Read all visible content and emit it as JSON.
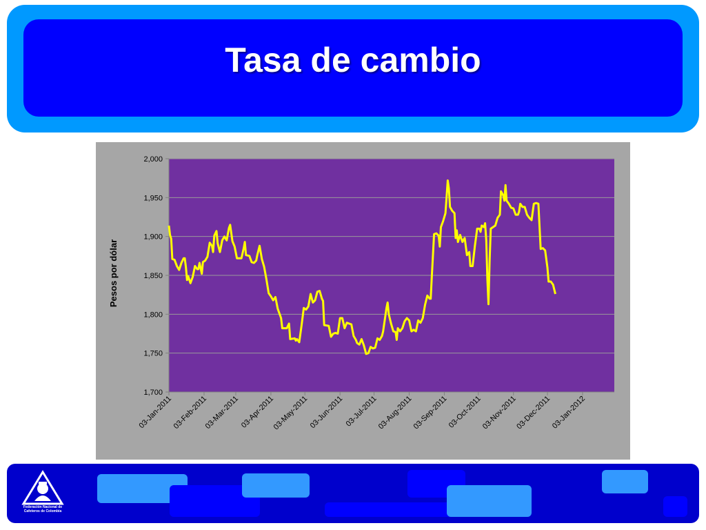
{
  "slide": {
    "title": "Tasa de cambio"
  },
  "logo": {
    "icon": "fnc-coffee-grower-logo",
    "line1": "Federación Nacional de",
    "line2": "Cafeteros de Colombia"
  },
  "colors": {
    "header_outer": "#0099ff",
    "header_inner": "#0000ff",
    "chart_frame": "#a6a6a6",
    "plot_area": "#7030a0",
    "series_line": "#ffff00",
    "footer_band": "#0000cc"
  },
  "chart_data": {
    "type": "line",
    "title": "",
    "xlabel": "",
    "ylabel": "Pesos por dólar",
    "ylim": [
      1700,
      2000
    ],
    "yticks": [
      1700,
      1750,
      1800,
      1850,
      1900,
      1950,
      2000
    ],
    "ytick_labels": [
      "1,700",
      "1,750",
      "1,800",
      "1,850",
      "1,900",
      "1,950",
      "2,000"
    ],
    "xlim": [
      "2011-01-03",
      "2012-01-31"
    ],
    "xticks": [
      "2011-01-03",
      "2011-02-03",
      "2011-03-03",
      "2011-04-03",
      "2011-05-03",
      "2011-06-03",
      "2011-07-03",
      "2011-08-03",
      "2011-09-03",
      "2011-10-03",
      "2011-11-03",
      "2011-12-03",
      "2012-01-03"
    ],
    "xtick_labels": [
      "03-Jan-2011",
      "03-Feb-2011",
      "03-Mar-2011",
      "03-Apr-2011",
      "03-May-2011",
      "03-Jun-2011",
      "03-Jul-2011",
      "03-Aug-2011",
      "03-Sep-2011",
      "03-Oct-2011",
      "03-Nov-2011",
      "03-Dec-2011",
      "03-Jan-2012"
    ],
    "grid": true,
    "legend": "none",
    "series": [
      {
        "points": [
          [
            "2011-01-03",
            1914
          ],
          [
            "2011-01-04",
            1902
          ],
          [
            "2011-01-05",
            1897
          ],
          [
            "2011-01-06",
            1871
          ],
          [
            "2011-01-08",
            1870
          ],
          [
            "2011-01-10",
            1862
          ],
          [
            "2011-01-12",
            1857
          ],
          [
            "2011-01-14",
            1866
          ],
          [
            "2011-01-16",
            1872
          ],
          [
            "2011-01-17",
            1872
          ],
          [
            "2011-01-18",
            1860
          ],
          [
            "2011-01-19",
            1844
          ],
          [
            "2011-01-20",
            1849
          ],
          [
            "2011-01-22",
            1840
          ],
          [
            "2011-01-24",
            1848
          ],
          [
            "2011-01-26",
            1862
          ],
          [
            "2011-01-28",
            1858
          ],
          [
            "2011-01-29",
            1858
          ],
          [
            "2011-01-30",
            1866
          ],
          [
            "2011-02-01",
            1852
          ],
          [
            "2011-02-02",
            1867
          ],
          [
            "2011-02-04",
            1869
          ],
          [
            "2011-02-06",
            1874
          ],
          [
            "2011-02-08",
            1892
          ],
          [
            "2011-02-10",
            1888
          ],
          [
            "2011-02-11",
            1880
          ],
          [
            "2011-02-12",
            1901
          ],
          [
            "2011-02-14",
            1907
          ],
          [
            "2011-02-15",
            1891
          ],
          [
            "2011-02-17",
            1880
          ],
          [
            "2011-02-19",
            1895
          ],
          [
            "2011-02-21",
            1900
          ],
          [
            "2011-02-23",
            1895
          ],
          [
            "2011-02-25",
            1911
          ],
          [
            "2011-02-26",
            1915
          ],
          [
            "2011-02-28",
            1894
          ],
          [
            "2011-03-02",
            1887
          ],
          [
            "2011-03-04",
            1872
          ],
          [
            "2011-03-06",
            1872
          ],
          [
            "2011-03-08",
            1872
          ],
          [
            "2011-03-10",
            1885
          ],
          [
            "2011-03-11",
            1893
          ],
          [
            "2011-03-12",
            1876
          ],
          [
            "2011-03-15",
            1875
          ],
          [
            "2011-03-17",
            1867
          ],
          [
            "2011-03-19",
            1866
          ],
          [
            "2011-03-21",
            1869
          ],
          [
            "2011-03-22",
            1876
          ],
          [
            "2011-03-24",
            1888
          ],
          [
            "2011-03-26",
            1871
          ],
          [
            "2011-03-28",
            1861
          ],
          [
            "2011-03-30",
            1845
          ],
          [
            "2011-04-01",
            1827
          ],
          [
            "2011-04-03",
            1823
          ],
          [
            "2011-04-05",
            1818
          ],
          [
            "2011-04-07",
            1822
          ],
          [
            "2011-04-09",
            1807
          ],
          [
            "2011-04-11",
            1799
          ],
          [
            "2011-04-12",
            1795
          ],
          [
            "2011-04-13",
            1782
          ],
          [
            "2011-04-17",
            1782
          ],
          [
            "2011-04-19",
            1788
          ],
          [
            "2011-04-20",
            1768
          ],
          [
            "2011-04-24",
            1769
          ],
          [
            "2011-04-25",
            1766
          ],
          [
            "2011-04-26",
            1768
          ],
          [
            "2011-04-28",
            1764
          ],
          [
            "2011-04-30",
            1785
          ],
          [
            "2011-05-02",
            1808
          ],
          [
            "2011-05-04",
            1806
          ],
          [
            "2011-05-06",
            1810
          ],
          [
            "2011-05-08",
            1826
          ],
          [
            "2011-05-10",
            1815
          ],
          [
            "2011-05-12",
            1818
          ],
          [
            "2011-05-14",
            1829
          ],
          [
            "2011-05-16",
            1830
          ],
          [
            "2011-05-18",
            1820
          ],
          [
            "2011-05-19",
            1817
          ],
          [
            "2011-05-20",
            1786
          ],
          [
            "2011-05-24",
            1785
          ],
          [
            "2011-05-26",
            1771
          ],
          [
            "2011-05-28",
            1775
          ],
          [
            "2011-05-30",
            1776
          ],
          [
            "2011-06-01",
            1775
          ],
          [
            "2011-06-03",
            1795
          ],
          [
            "2011-06-05",
            1795
          ],
          [
            "2011-06-07",
            1782
          ],
          [
            "2011-06-09",
            1789
          ],
          [
            "2011-06-13",
            1787
          ],
          [
            "2011-06-15",
            1772
          ],
          [
            "2011-06-17",
            1767
          ],
          [
            "2011-06-18",
            1763
          ],
          [
            "2011-06-20",
            1761
          ],
          [
            "2011-06-22",
            1768
          ],
          [
            "2011-06-24",
            1760
          ],
          [
            "2011-06-26",
            1749
          ],
          [
            "2011-06-28",
            1750
          ],
          [
            "2011-06-30",
            1758
          ],
          [
            "2011-07-02",
            1756
          ],
          [
            "2011-07-04",
            1757
          ],
          [
            "2011-07-06",
            1769
          ],
          [
            "2011-07-08",
            1767
          ],
          [
            "2011-07-10",
            1772
          ],
          [
            "2011-07-11",
            1778
          ],
          [
            "2011-07-12",
            1788
          ],
          [
            "2011-07-14",
            1808
          ],
          [
            "2011-07-15",
            1815
          ],
          [
            "2011-07-16",
            1800
          ],
          [
            "2011-07-18",
            1788
          ],
          [
            "2011-07-20",
            1778
          ],
          [
            "2011-07-22",
            1777
          ],
          [
            "2011-07-23",
            1767
          ],
          [
            "2011-07-24",
            1782
          ],
          [
            "2011-07-26",
            1778
          ],
          [
            "2011-07-28",
            1782
          ],
          [
            "2011-07-30",
            1791
          ],
          [
            "2011-08-01",
            1795
          ],
          [
            "2011-08-03",
            1792
          ],
          [
            "2011-08-05",
            1778
          ],
          [
            "2011-08-07",
            1780
          ],
          [
            "2011-08-09",
            1778
          ],
          [
            "2011-08-11",
            1792
          ],
          [
            "2011-08-13",
            1789
          ],
          [
            "2011-08-15",
            1795
          ],
          [
            "2011-08-17",
            1812
          ],
          [
            "2011-08-19",
            1824
          ],
          [
            "2011-08-21",
            1820
          ],
          [
            "2011-08-22",
            1820
          ],
          [
            "2011-08-23",
            1850
          ],
          [
            "2011-08-25",
            1903
          ],
          [
            "2011-08-27",
            1904
          ],
          [
            "2011-08-29",
            1901
          ],
          [
            "2011-08-30",
            1887
          ],
          [
            "2011-08-31",
            1912
          ],
          [
            "2011-09-02",
            1920
          ],
          [
            "2011-09-04",
            1930
          ],
          [
            "2011-09-05",
            1950
          ],
          [
            "2011-09-06",
            1972
          ],
          [
            "2011-09-07",
            1962
          ],
          [
            "2011-09-08",
            1938
          ],
          [
            "2011-09-10",
            1933
          ],
          [
            "2011-09-12",
            1930
          ],
          [
            "2011-09-13",
            1898
          ],
          [
            "2011-09-14",
            1908
          ],
          [
            "2011-09-15",
            1893
          ],
          [
            "2011-09-17",
            1902
          ],
          [
            "2011-09-19",
            1893
          ],
          [
            "2011-09-21",
            1898
          ],
          [
            "2011-09-23",
            1876
          ],
          [
            "2011-09-25",
            1880
          ],
          [
            "2011-09-26",
            1862
          ],
          [
            "2011-09-28",
            1862
          ],
          [
            "2011-09-30",
            1888
          ],
          [
            "2011-10-02",
            1910
          ],
          [
            "2011-10-04",
            1910
          ],
          [
            "2011-10-05",
            1906
          ],
          [
            "2011-10-06",
            1914
          ],
          [
            "2011-10-08",
            1912
          ],
          [
            "2011-10-09",
            1917
          ],
          [
            "2011-10-10",
            1895
          ],
          [
            "2011-10-11",
            1845
          ],
          [
            "2011-10-12",
            1813
          ],
          [
            "2011-10-13",
            1870
          ],
          [
            "2011-10-14",
            1910
          ],
          [
            "2011-10-16",
            1912
          ],
          [
            "2011-10-18",
            1914
          ],
          [
            "2011-10-20",
            1924
          ],
          [
            "2011-10-22",
            1928
          ],
          [
            "2011-10-23",
            1958
          ],
          [
            "2011-10-25",
            1953
          ],
          [
            "2011-10-26",
            1946
          ],
          [
            "2011-10-27",
            1966
          ],
          [
            "2011-10-28",
            1946
          ],
          [
            "2011-10-30",
            1942
          ],
          [
            "2011-11-01",
            1937
          ],
          [
            "2011-11-03",
            1936
          ],
          [
            "2011-11-05",
            1928
          ],
          [
            "2011-11-07",
            1928
          ],
          [
            "2011-11-08",
            1932
          ],
          [
            "2011-11-09",
            1942
          ],
          [
            "2011-11-11",
            1938
          ],
          [
            "2011-11-13",
            1938
          ],
          [
            "2011-11-15",
            1928
          ],
          [
            "2011-11-17",
            1924
          ],
          [
            "2011-11-19",
            1921
          ],
          [
            "2011-11-21",
            1942
          ],
          [
            "2011-11-23",
            1943
          ],
          [
            "2011-11-25",
            1942
          ],
          [
            "2011-11-27",
            1884
          ],
          [
            "2011-11-29",
            1885
          ],
          [
            "2011-12-01",
            1882
          ],
          [
            "2011-12-03",
            1860
          ],
          [
            "2011-12-04",
            1842
          ],
          [
            "2011-12-06",
            1842
          ],
          [
            "2011-12-08",
            1838
          ],
          [
            "2011-12-10",
            1826
          ]
        ]
      }
    ]
  }
}
